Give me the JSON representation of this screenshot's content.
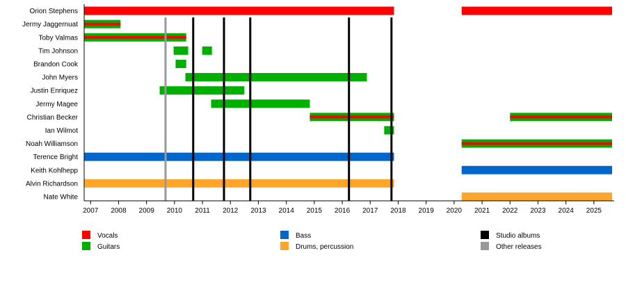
{
  "chart_data": {
    "type": "timeline",
    "xlim": [
      2006.77,
      2025.65
    ],
    "x_ticks": [
      2007,
      2008,
      2009,
      2010,
      2011,
      2012,
      2013,
      2014,
      2015,
      2016,
      2017,
      2018,
      2019,
      2020,
      2021,
      2022,
      2023,
      2024,
      2025
    ],
    "colors": {
      "vocals": "#ff0000",
      "guitars": "#00b000",
      "bass": "#0066cc",
      "drums": "#ffa52a",
      "studio": "#000000",
      "other": "#999999"
    },
    "members": [
      {
        "name": "Orion Stephens",
        "periods": [
          {
            "start": 2006.77,
            "end": 2017.85,
            "roles": [
              "vocals"
            ]
          },
          {
            "start": 2020.27,
            "end": 2025.65,
            "roles": [
              "vocals"
            ]
          }
        ]
      },
      {
        "name": "Jermy Jaggernuat",
        "periods": [
          {
            "start": 2006.77,
            "end": 2008.07,
            "roles": [
              "guitars",
              "vocals"
            ]
          }
        ]
      },
      {
        "name": "Toby Valmas",
        "periods": [
          {
            "start": 2006.77,
            "end": 2010.42,
            "roles": [
              "guitars",
              "vocals"
            ]
          }
        ]
      },
      {
        "name": "Tim Johnson",
        "periods": [
          {
            "start": 2009.97,
            "end": 2010.49,
            "roles": [
              "guitars"
            ]
          },
          {
            "start": 2010.99,
            "end": 2011.34,
            "roles": [
              "guitars"
            ]
          }
        ]
      },
      {
        "name": "Brandon Cook",
        "periods": [
          {
            "start": 2010.04,
            "end": 2010.42,
            "roles": [
              "guitars"
            ]
          }
        ]
      },
      {
        "name": "John Myers",
        "periods": [
          {
            "start": 2010.39,
            "end": 2016.88,
            "roles": [
              "guitars"
            ]
          }
        ]
      },
      {
        "name": "Justin Enriquez",
        "periods": [
          {
            "start": 2009.47,
            "end": 2012.5,
            "roles": [
              "guitars"
            ]
          }
        ]
      },
      {
        "name": "Jermy Magee",
        "periods": [
          {
            "start": 2011.31,
            "end": 2014.84,
            "roles": [
              "guitars"
            ]
          }
        ]
      },
      {
        "name": "Christian Becker",
        "periods": [
          {
            "start": 2014.84,
            "end": 2017.85,
            "roles": [
              "guitars",
              "vocals"
            ]
          },
          {
            "start": 2022.0,
            "end": 2025.65,
            "roles": [
              "guitars",
              "vocals"
            ]
          }
        ]
      },
      {
        "name": "Ian Wilmot",
        "periods": [
          {
            "start": 2017.5,
            "end": 2017.85,
            "roles": [
              "guitars"
            ]
          }
        ]
      },
      {
        "name": "Noah Williamson",
        "periods": [
          {
            "start": 2020.27,
            "end": 2025.65,
            "roles": [
              "guitars",
              "vocals"
            ]
          }
        ]
      },
      {
        "name": "Terence Bright",
        "periods": [
          {
            "start": 2006.77,
            "end": 2017.85,
            "roles": [
              "bass"
            ]
          }
        ]
      },
      {
        "name": "Keith Kohlhepp",
        "periods": [
          {
            "start": 2020.27,
            "end": 2025.65,
            "roles": [
              "bass"
            ]
          }
        ]
      },
      {
        "name": "Alvin Richardson",
        "periods": [
          {
            "start": 2006.77,
            "end": 2017.85,
            "roles": [
              "drums"
            ]
          }
        ]
      },
      {
        "name": "Nate White",
        "periods": [
          {
            "start": 2020.27,
            "end": 2025.65,
            "roles": [
              "drums"
            ]
          }
        ]
      }
    ],
    "releases": [
      {
        "x": 2009.68,
        "type": "other"
      },
      {
        "x": 2010.67,
        "type": "studio"
      },
      {
        "x": 2011.77,
        "type": "studio"
      },
      {
        "x": 2012.71,
        "type": "studio"
      },
      {
        "x": 2016.24,
        "type": "studio"
      },
      {
        "x": 2017.76,
        "type": "studio"
      }
    ],
    "legend": [
      {
        "key": "vocals",
        "label": "Vocals"
      },
      {
        "key": "guitars",
        "label": "Guitars"
      },
      {
        "key": "bass",
        "label": "Bass"
      },
      {
        "key": "drums",
        "label": "Drums, percussion"
      },
      {
        "key": "studio",
        "label": "Studio albums"
      },
      {
        "key": "other",
        "label": "Other releases"
      }
    ],
    "legend_placement": "bottom"
  }
}
